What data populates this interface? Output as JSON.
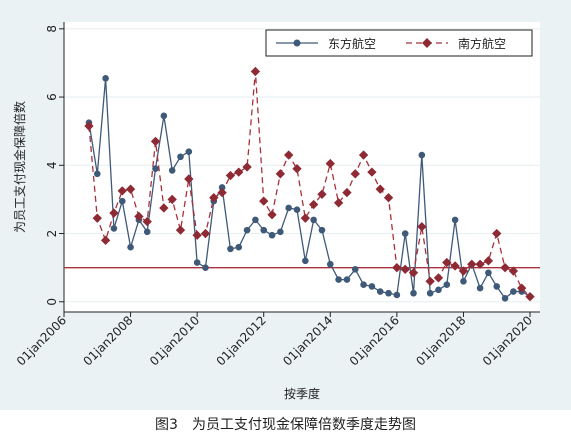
{
  "caption": "图3　为员工支付现金保障倍数季度走势图",
  "chart_data": {
    "type": "line",
    "xlabel": "按季度",
    "ylabel": "为员工支付现金保障倍数",
    "x_tick_labels": [
      "01jan2006",
      "01jan2008",
      "01jan2010",
      "01jan2012",
      "01jan2014",
      "01jan2016",
      "01jan2018",
      "01jan2020"
    ],
    "y_ticks": [
      0,
      2,
      4,
      6,
      8
    ],
    "ylim": [
      -0.3,
      8.2
    ],
    "xlim": [
      2006.0,
      2020.3
    ],
    "reference_line": {
      "y": 1,
      "color": "#a8323c"
    },
    "legend_position": "top-right",
    "colors": {
      "series1": "#3f5a78",
      "series2": "#a8323c"
    },
    "x": [
      2006.75,
      2007.0,
      2007.25,
      2007.5,
      2007.75,
      2008.0,
      2008.25,
      2008.5,
      2008.75,
      2009.0,
      2009.25,
      2009.5,
      2009.75,
      2010.0,
      2010.25,
      2010.5,
      2010.75,
      2011.0,
      2011.25,
      2011.5,
      2011.75,
      2012.0,
      2012.25,
      2012.5,
      2012.75,
      2013.0,
      2013.25,
      2013.5,
      2013.75,
      2014.0,
      2014.25,
      2014.5,
      2014.75,
      2015.0,
      2015.25,
      2015.5,
      2015.75,
      2016.0,
      2016.25,
      2016.5,
      2016.75,
      2017.0,
      2017.25,
      2017.5,
      2017.75,
      2018.0,
      2018.25,
      2018.5,
      2018.75,
      2019.0,
      2019.25,
      2019.5,
      2019.75,
      2020.0
    ],
    "series": [
      {
        "name": "东方航空",
        "style": "solid-circle",
        "values": [
          5.25,
          3.75,
          6.55,
          2.15,
          2.95,
          1.6,
          2.4,
          2.05,
          3.9,
          5.45,
          3.85,
          4.25,
          4.4,
          1.15,
          1.0,
          2.95,
          3.35,
          1.55,
          1.6,
          2.1,
          2.4,
          2.1,
          1.95,
          2.05,
          2.75,
          2.7,
          1.2,
          2.4,
          2.1,
          1.1,
          0.65,
          0.65,
          0.95,
          0.5,
          0.45,
          0.3,
          0.25,
          0.2,
          2.0,
          0.25,
          4.3,
          0.25,
          0.35,
          0.5,
          2.4,
          0.6,
          1.1,
          0.4,
          0.85,
          0.45,
          0.1,
          0.3,
          0.3,
          0.15
        ]
      },
      {
        "name": "南方航空",
        "style": "dashed-diamond",
        "values": [
          5.15,
          2.45,
          1.8,
          2.6,
          3.25,
          3.3,
          2.5,
          2.35,
          4.7,
          2.75,
          3.0,
          2.1,
          3.6,
          1.95,
          2.0,
          3.05,
          3.2,
          3.7,
          3.8,
          3.95,
          6.75,
          2.95,
          2.55,
          3.75,
          4.3,
          3.9,
          2.45,
          2.85,
          3.15,
          4.05,
          2.9,
          3.2,
          3.75,
          4.3,
          3.8,
          3.3,
          3.05,
          1.0,
          0.95,
          0.85,
          2.2,
          0.6,
          0.7,
          1.15,
          1.05,
          0.9,
          1.1,
          1.1,
          1.2,
          2.0,
          1.0,
          0.9,
          0.4,
          0.15
        ]
      }
    ]
  }
}
